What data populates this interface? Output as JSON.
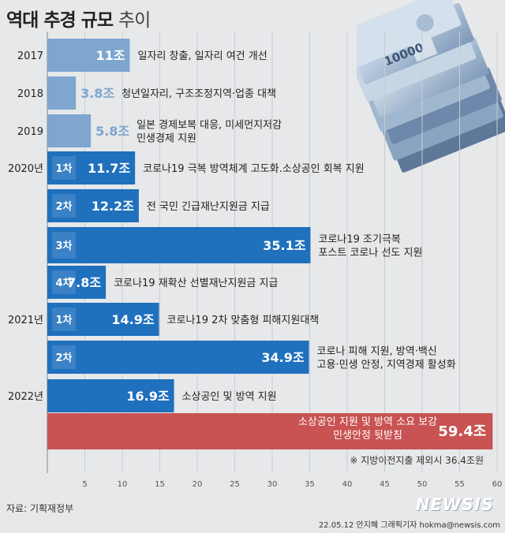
{
  "header": {
    "title_bold": "역대 추경 규모",
    "title_light": "추이"
  },
  "note": "※ 지방이전지출 제외시 36.4조원",
  "source": "자료: 기획재정부",
  "credit": "22.05.12 안지혜 그래픽기자 hokma@newsis.com",
  "logo": "NEWSIS",
  "money_icon": "won-banknote-stack-icon",
  "colors": {
    "light_blue": "#7ea6cf",
    "blue": "#1f70bd",
    "red": "#c95252",
    "background": "#e6e8ea"
  },
  "chart_data": {
    "type": "bar",
    "orientation": "horizontal",
    "xlim": [
      0,
      60
    ],
    "xticks": [
      5,
      10,
      15,
      20,
      25,
      30,
      35,
      40,
      45,
      50,
      55,
      60
    ],
    "grid": true,
    "unit": "조",
    "items": [
      {
        "year": "2017",
        "round": "",
        "value": 11,
        "value_label": "11조",
        "desc": [
          "일자리 창출, 일자리 여건 개선"
        ],
        "style": "light"
      },
      {
        "year": "2018",
        "round": "",
        "value": 3.8,
        "value_label": "3.8조",
        "desc": [
          "청년일자리, 구조조정지역·업종 대책"
        ],
        "style": "light"
      },
      {
        "year": "2019",
        "round": "",
        "value": 5.8,
        "value_label": "5.8조",
        "desc": [
          "일본 경제보복 대응, 미세먼지저감",
          "민생경제 지원"
        ],
        "style": "light"
      },
      {
        "year": "2020년",
        "round": "1차",
        "value": 11.7,
        "value_label": "11.7조",
        "desc": [
          "코로나19 극복 방역체계 고도화.소상공인 회복 지원"
        ],
        "style": "blue"
      },
      {
        "year": "",
        "round": "2차",
        "value": 12.2,
        "value_label": "12.2조",
        "desc": [
          "전 국민 긴급재난지원금 지급"
        ],
        "style": "blue"
      },
      {
        "year": "",
        "round": "3차",
        "value": 35.1,
        "value_label": "35.1조",
        "desc": [
          "코로나19 조기극복",
          "포스트 코로나 선도 지원"
        ],
        "style": "blue"
      },
      {
        "year": "",
        "round": "4차",
        "value": 7.8,
        "value_label": "7.8조",
        "desc": [
          "코로나19 재확산 선별재난지원금 지급"
        ],
        "style": "blue"
      },
      {
        "year": "2021년",
        "round": "1차",
        "value": 14.9,
        "value_label": "14.9조",
        "desc": [
          "코로나19 2차 맞춤형 피해지원대책"
        ],
        "style": "blue"
      },
      {
        "year": "",
        "round": "2차",
        "value": 34.9,
        "value_label": "34.9조",
        "desc": [
          "코로나 피해 지원, 방역·백신",
          "고용·민생 안정, 지역경제 활성화"
        ],
        "style": "blue"
      },
      {
        "year": "2022년",
        "round": "",
        "value": 16.9,
        "value_label": "16.9조",
        "desc": [
          "소상공인 및 방역 지원"
        ],
        "style": "blue"
      },
      {
        "year": "",
        "round": "",
        "value": 59.4,
        "value_label": "59.4조",
        "desc": [
          "소상공인 지원 및 방역 소요 보강",
          "민생안정 뒷받침"
        ],
        "style": "red"
      }
    ]
  }
}
